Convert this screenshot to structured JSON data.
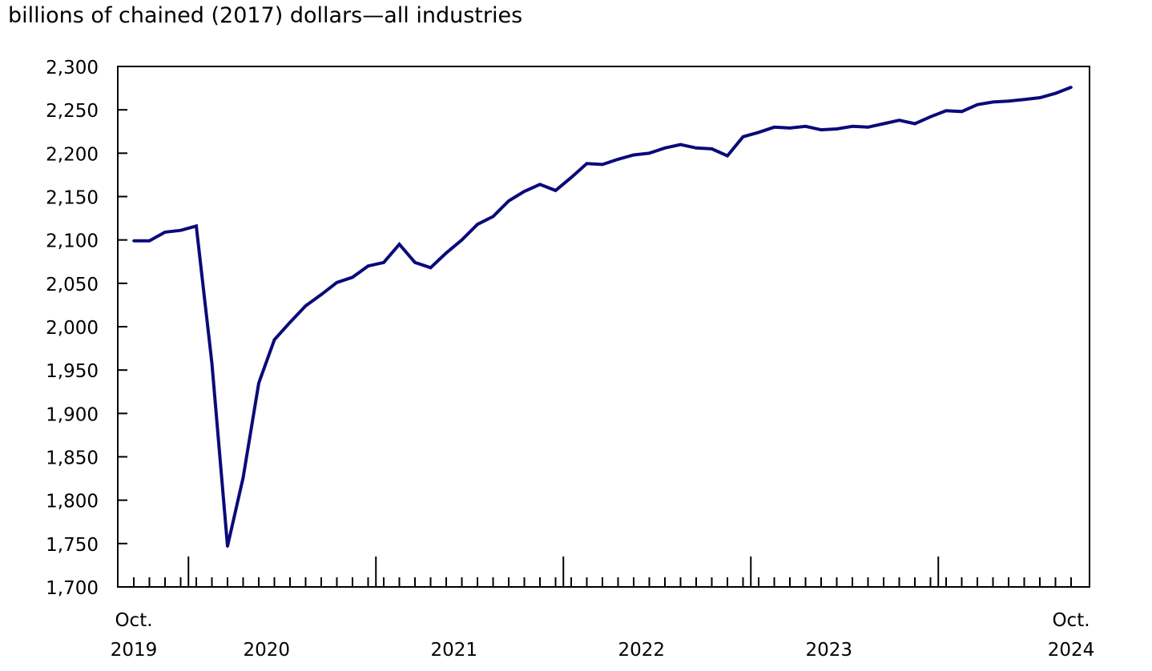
{
  "chart_data": {
    "type": "line",
    "title": "billions of chained (2017) dollars—all industries",
    "xlabel": "",
    "ylabel": "billions of chained (2017) dollars",
    "ylim": [
      1700,
      2300
    ],
    "yticks": [
      "1,700",
      "1,750",
      "1,800",
      "1,850",
      "1,900",
      "1,950",
      "2,000",
      "2,050",
      "2,100",
      "2,150",
      "2,200",
      "2,250",
      "2,300"
    ],
    "x_start": "Oct. 2019",
    "x_end": "Oct. 2024",
    "x_labels": [
      {
        "top": "Oct.",
        "bottom": "2019",
        "month_index": 0
      },
      {
        "top": "",
        "bottom": "2020",
        "month_index": 8.5
      },
      {
        "top": "",
        "bottom": "2021",
        "month_index": 20.5
      },
      {
        "top": "",
        "bottom": "2022",
        "month_index": 32.5
      },
      {
        "top": "",
        "bottom": "2023",
        "month_index": 44.5
      },
      {
        "top": "Oct.",
        "bottom": "2024",
        "month_index": 60
      }
    ],
    "year_boundaries": [
      3,
      15,
      27,
      39,
      51
    ],
    "grid": false,
    "legend": "none",
    "series": [
      {
        "name": "All industries",
        "color": "#0a0a7a",
        "values": [
          2099,
          2099,
          2109,
          2111,
          2116,
          1958,
          1747,
          1826,
          1935,
          1985,
          2005,
          2024,
          2037,
          2051,
          2057,
          2070,
          2074,
          2095,
          2074,
          2068,
          2085,
          2100,
          2118,
          2127,
          2145,
          2156,
          2164,
          2157,
          2172,
          2188,
          2187,
          2193,
          2198,
          2200,
          2206,
          2210,
          2206,
          2205,
          2197,
          2219,
          2224,
          2230,
          2229,
          2231,
          2227,
          2228,
          2231,
          2230,
          2234,
          2238,
          2234,
          2242,
          2249,
          2248,
          2256,
          2259,
          2260,
          2262,
          2264,
          2269,
          2276
        ]
      }
    ]
  }
}
